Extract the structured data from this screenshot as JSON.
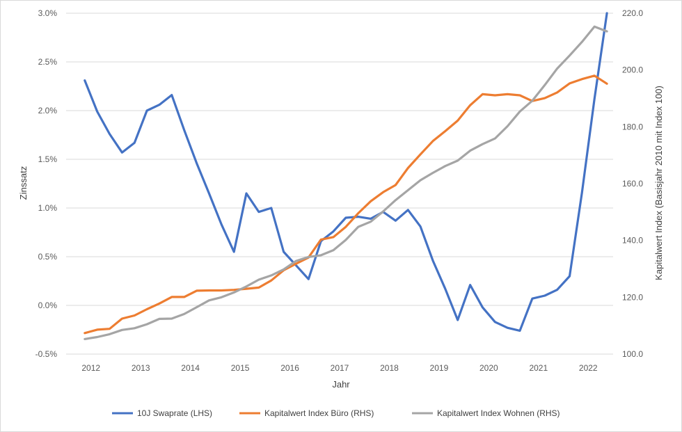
{
  "chart_data": {
    "type": "line",
    "xlabel": "Jahr",
    "ylabel_left": "Zinssatz",
    "ylabel_right": "Kapitalwert Index (Basisjahr 2010 mit Index 100)",
    "x_ticks": [
      "2012",
      "2013",
      "2014",
      "2015",
      "2016",
      "2017",
      "2018",
      "2019",
      "2020",
      "2021",
      "2022"
    ],
    "y_left": {
      "min": -0.5,
      "max": 3.0,
      "step": 0.5,
      "ticks": [
        "-0.5%",
        "0.0%",
        "0.5%",
        "1.0%",
        "1.5%",
        "2.0%",
        "2.5%",
        "3.0%"
      ]
    },
    "y_right": {
      "min": 100,
      "max": 220,
      "step": 20,
      "ticks": [
        "100.0",
        "120.0",
        "140.0",
        "160.0",
        "180.0",
        "200.0",
        "220.0"
      ]
    },
    "x": [
      "2011-Q4",
      "2012-Q1",
      "2012-Q2",
      "2012-Q3",
      "2012-Q4",
      "2013-Q1",
      "2013-Q2",
      "2013-Q3",
      "2013-Q4",
      "2014-Q1",
      "2014-Q2",
      "2014-Q3",
      "2014-Q4",
      "2015-Q1",
      "2015-Q2",
      "2015-Q3",
      "2015-Q4",
      "2016-Q1",
      "2016-Q2",
      "2016-Q3",
      "2016-Q4",
      "2017-Q1",
      "2017-Q2",
      "2017-Q3",
      "2017-Q4",
      "2018-Q1",
      "2018-Q2",
      "2018-Q3",
      "2018-Q4",
      "2019-Q1",
      "2019-Q2",
      "2019-Q3",
      "2019-Q4",
      "2020-Q1",
      "2020-Q2",
      "2020-Q3",
      "2020-Q4",
      "2021-Q1",
      "2021-Q2",
      "2021-Q3",
      "2021-Q4",
      "2022-Q1",
      "2022-Q2"
    ],
    "series": [
      {
        "name": "10J Swaprate (LHS)",
        "axis": "left",
        "color": "#4472C4",
        "values": [
          2.31,
          1.99,
          1.76,
          1.57,
          1.67,
          2.0,
          2.06,
          2.16,
          1.8,
          1.46,
          1.15,
          0.83,
          0.55,
          1.15,
          0.96,
          1.0,
          0.55,
          0.41,
          0.27,
          0.66,
          0.76,
          0.9,
          0.91,
          0.89,
          0.96,
          0.87,
          0.98,
          0.81,
          0.46,
          0.17,
          -0.15,
          0.21,
          -0.02,
          -0.17,
          -0.23,
          -0.26,
          0.07,
          0.1,
          0.16,
          0.3,
          1.16,
          2.12,
          3.0
        ]
      },
      {
        "name": "Kapitalwert Index Büro (RHS)",
        "axis": "right",
        "color": "#ED7D31",
        "values": [
          107.4,
          108.6,
          108.9,
          112.5,
          113.6,
          115.8,
          117.8,
          120.1,
          120.1,
          122.3,
          122.4,
          122.4,
          122.6,
          123.0,
          123.4,
          125.9,
          129.5,
          131.8,
          134.0,
          140.3,
          141.2,
          144.8,
          149.6,
          153.8,
          157.0,
          159.5,
          165.5,
          170.3,
          175.0,
          178.5,
          182.2,
          187.6,
          191.5,
          191.1,
          191.5,
          191.1,
          189.1,
          190.1,
          192.1,
          195.3,
          196.8,
          198.0,
          195.2
        ]
      },
      {
        "name": "Kapitalwert Index Wohnen (RHS)",
        "axis": "right",
        "color": "#A5A5A5",
        "values": [
          105.3,
          106.0,
          107.0,
          108.5,
          109.1,
          110.5,
          112.4,
          112.5,
          114.1,
          116.5,
          118.9,
          120.0,
          121.7,
          123.8,
          126.2,
          127.7,
          129.8,
          132.8,
          134.2,
          134.8,
          136.6,
          140.2,
          144.8,
          146.6,
          150.2,
          154.2,
          157.7,
          161.2,
          163.8,
          166.2,
          168.1,
          171.6,
          173.9,
          175.9,
          180.2,
          185.4,
          189.2,
          194.7,
          200.5,
          205.1,
          209.9,
          215.3,
          213.6
        ]
      }
    ],
    "legend_position": "bottom",
    "grid": "horizontal"
  }
}
